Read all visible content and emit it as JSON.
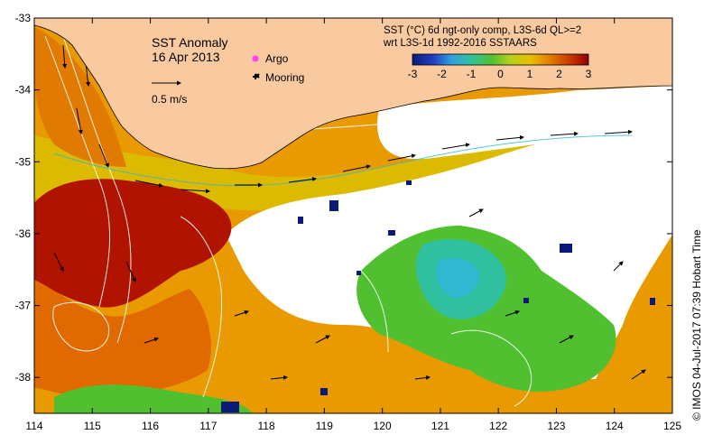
{
  "title": {
    "name": "SST Anomaly",
    "date": "16 Apr 2013"
  },
  "legend": {
    "argo_label": "Argo",
    "mooring_label": "Mooring",
    "velocity_label": "0.5 m/s"
  },
  "colorbar": {
    "line1": "SST (°C) 6d ngt-only comp, L3S-6d QL>=2",
    "line2": "wrt L3S-1d 1992-2016 SSTAARS",
    "ticks": [
      "-3",
      "-2",
      "-1",
      "0",
      "1",
      "2",
      "3"
    ],
    "range": [
      -3,
      3
    ]
  },
  "axes": {
    "x_ticks": [
      "114",
      "115",
      "116",
      "117",
      "118",
      "119",
      "120",
      "121",
      "122",
      "123",
      "124",
      "125"
    ],
    "x_values": [
      114,
      115,
      116,
      117,
      118,
      119,
      120,
      121,
      122,
      123,
      124,
      125
    ],
    "y_ticks": [
      "-33",
      "-34",
      "-35",
      "-36",
      "-37",
      "-38"
    ],
    "y_values": [
      -33,
      -34,
      -35,
      -36,
      -37,
      -38
    ],
    "x_range": [
      114,
      125
    ],
    "y_range": [
      -38.5,
      -33
    ]
  },
  "credit": "© IMOS 04-Jul-2017 07:39 Hobart Time",
  "colors": {
    "land": "#f9c9a0",
    "hot": "#b01400",
    "warm": "#e06a00",
    "orange": "#f0a000",
    "yellow": "#d8c000",
    "green": "#50c030",
    "teal": "#30c0a0",
    "cyan": "#30b8d0",
    "navy": "#0a1a7a",
    "contour": "#ffffff"
  }
}
